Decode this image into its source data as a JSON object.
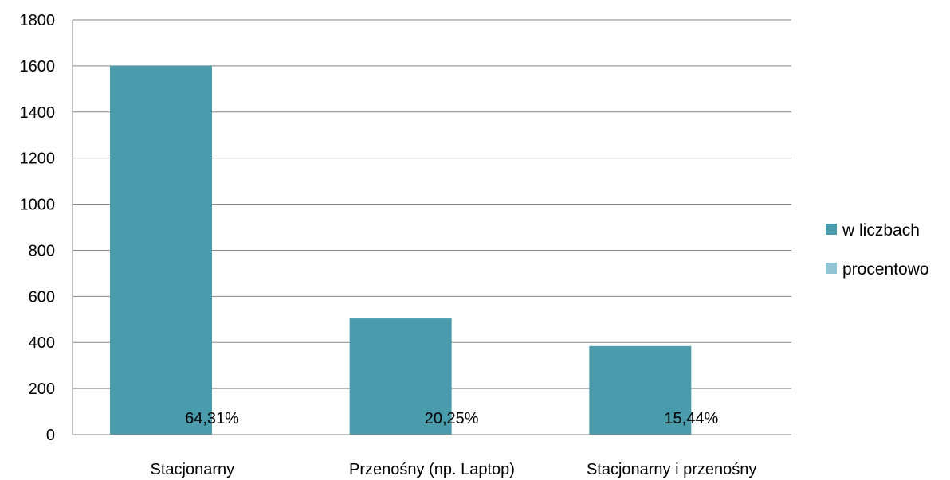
{
  "chart_data": {
    "type": "bar",
    "categories": [
      "Stacjonarny",
      "Przenośny (np. Laptop)",
      "Stacjonarny i przenośny"
    ],
    "series": [
      {
        "name": "w liczbach",
        "values": [
          1600,
          504,
          384
        ],
        "color": "#4A9BAB"
      },
      {
        "name": "procentowo",
        "values": [
          0.6431,
          0.2025,
          0.1544
        ],
        "labels": [
          "64,31%",
          "20,25%",
          "15,44%"
        ],
        "color": "#93C6D4"
      }
    ],
    "yticks": [
      0,
      200,
      400,
      600,
      800,
      1000,
      1200,
      1400,
      1600,
      1800
    ],
    "ylim": [
      0,
      1800
    ],
    "grid": true,
    "legend_position": "right"
  }
}
